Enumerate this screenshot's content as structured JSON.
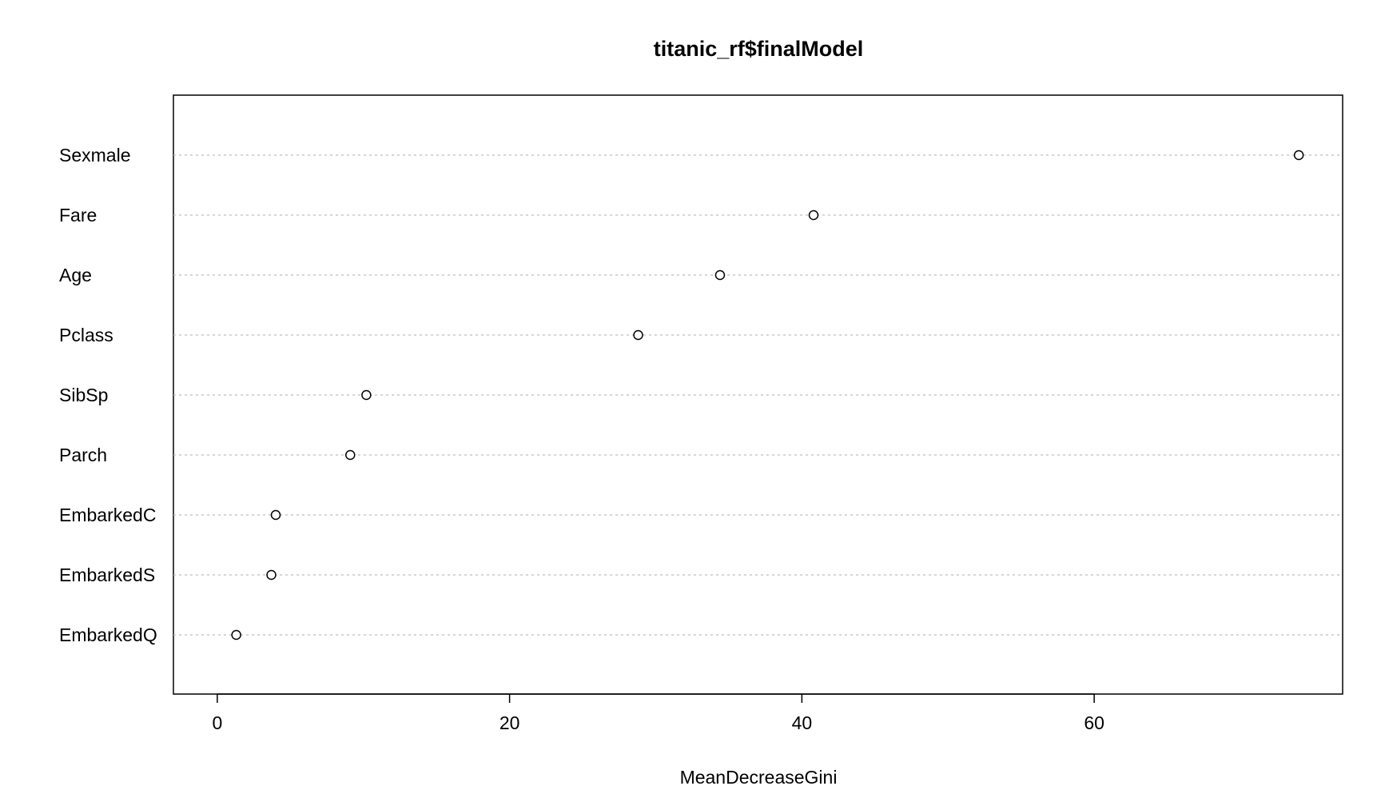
{
  "chart_data": {
    "type": "scatter",
    "title": "titanic_rf$finalModel",
    "xlabel": "MeanDecreaseGini",
    "ylabel": "",
    "categories": [
      "Sexmale",
      "Fare",
      "Age",
      "Pclass",
      "SibSp",
      "Parch",
      "EmbarkedC",
      "EmbarkedS",
      "EmbarkedQ"
    ],
    "values": [
      74.0,
      40.8,
      34.4,
      28.8,
      10.2,
      9.1,
      4.0,
      3.7,
      1.3
    ],
    "xlim": [
      -3,
      77
    ],
    "x_ticks": [
      0,
      20,
      40,
      60
    ],
    "grid": "dotted horizontal",
    "legend": "none"
  }
}
